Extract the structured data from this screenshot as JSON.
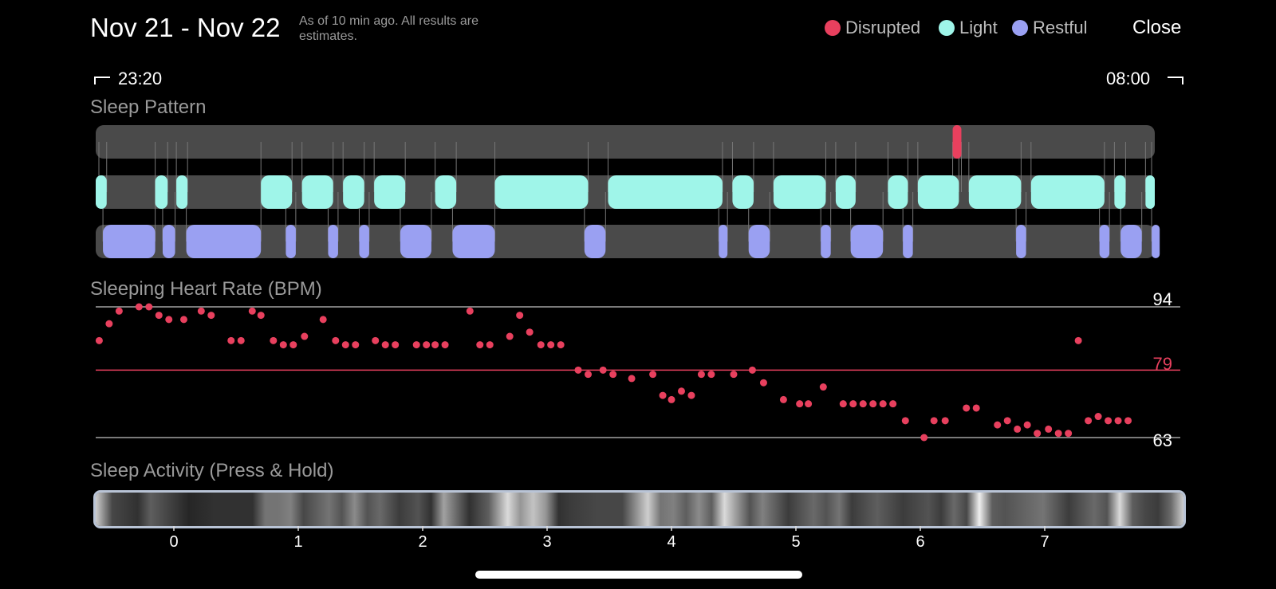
{
  "header": {
    "title": "Nov 21 - Nov 22",
    "as_of": "As of 10 min ago. All results are estimates.",
    "close_label": "Close"
  },
  "legend": [
    {
      "label": "Disrupted",
      "color": "#e8405e"
    },
    {
      "label": "Light",
      "color": "#9ff5e9"
    },
    {
      "label": "Restful",
      "color": "#9aa0f2"
    }
  ],
  "time_range": {
    "start": "23:20",
    "end": "08:00"
  },
  "sections": {
    "sleep_pattern": "Sleep Pattern",
    "heart_rate": "Sleeping Heart Rate (BPM)",
    "activity": "Sleep Activity (Press & Hold)"
  },
  "chart_data": [
    {
      "type": "timeline",
      "name": "sleep_pattern",
      "x_range_hours": [
        -0.63,
        7.9
      ],
      "rows": [
        {
          "state": "Disrupted",
          "color": "#e8405e",
          "segments": [
            [
              6.26,
              6.33
            ]
          ]
        },
        {
          "state": "Light",
          "color": "#9ff5e9",
          "segments": [
            [
              -0.63,
              -0.54
            ],
            [
              -0.15,
              -0.05
            ],
            [
              0.02,
              0.11
            ],
            [
              0.7,
              0.95
            ],
            [
              1.03,
              1.28
            ],
            [
              1.36,
              1.53
            ],
            [
              1.61,
              1.86
            ],
            [
              2.1,
              2.27
            ],
            [
              2.58,
              3.33
            ],
            [
              3.49,
              4.41
            ],
            [
              4.49,
              4.66
            ],
            [
              4.82,
              5.24
            ],
            [
              5.32,
              5.48
            ],
            [
              5.74,
              5.9
            ],
            [
              5.98,
              6.31
            ],
            [
              6.39,
              6.81
            ],
            [
              6.89,
              7.48
            ],
            [
              7.56,
              7.65
            ],
            [
              7.81,
              7.9
            ]
          ]
        },
        {
          "state": "Restful",
          "color": "#9aa0f2",
          "segments": [
            [
              -0.57,
              -0.15
            ],
            [
              -0.09,
              0.01
            ],
            [
              0.1,
              0.7
            ],
            [
              0.9,
              0.98
            ],
            [
              1.24,
              1.32
            ],
            [
              1.49,
              1.57
            ],
            [
              1.82,
              2.07
            ],
            [
              2.24,
              2.58
            ],
            [
              3.3,
              3.47
            ],
            [
              4.38,
              4.45
            ],
            [
              4.62,
              4.79
            ],
            [
              5.2,
              5.28
            ],
            [
              5.44,
              5.7
            ],
            [
              5.86,
              5.94
            ],
            [
              6.77,
              6.85
            ],
            [
              7.44,
              7.52
            ],
            [
              7.61,
              7.78
            ],
            [
              7.86,
              7.94
            ]
          ]
        }
      ]
    },
    {
      "type": "scatter",
      "name": "sleeping_heart_rate",
      "ylim": [
        63,
        94
      ],
      "y_ticks": [
        94,
        79,
        63
      ],
      "reference_line": 79,
      "x_hours": [
        -0.6,
        -0.52,
        -0.44,
        -0.28,
        -0.2,
        -0.12,
        -0.04,
        0.08,
        0.22,
        0.3,
        0.46,
        0.54,
        0.63,
        0.7,
        0.8,
        0.88,
        0.96,
        1.05,
        1.2,
        1.3,
        1.38,
        1.46,
        1.62,
        1.7,
        1.78,
        1.95,
        2.03,
        2.1,
        2.18,
        2.38,
        2.46,
        2.54,
        2.7,
        2.78,
        2.86,
        2.95,
        3.03,
        3.11,
        3.25,
        3.33,
        3.45,
        3.53,
        3.68,
        3.85,
        3.93,
        4.0,
        4.08,
        4.16,
        4.24,
        4.32,
        4.5,
        4.65,
        4.74,
        4.9,
        5.03,
        5.1,
        5.22,
        5.38,
        5.46,
        5.54,
        5.62,
        5.7,
        5.78,
        5.88,
        6.03,
        6.11,
        6.2,
        6.37,
        6.45,
        6.62,
        6.7,
        6.78,
        6.86,
        6.94,
        7.03,
        7.11,
        7.19,
        7.27,
        7.35,
        7.43,
        7.51,
        7.59,
        7.67
      ],
      "values": [
        86,
        90,
        93,
        94,
        94,
        92,
        91,
        91,
        93,
        92,
        86,
        86,
        93,
        92,
        86,
        85,
        85,
        87,
        91,
        86,
        85,
        85,
        86,
        85,
        85,
        85,
        85,
        85,
        85,
        93,
        85,
        85,
        87,
        92,
        88,
        85,
        85,
        85,
        79,
        78,
        79,
        78,
        77,
        78,
        73,
        72,
        74,
        73,
        78,
        78,
        78,
        79,
        76,
        72,
        71,
        71,
        75,
        71,
        71,
        71,
        71,
        71,
        71,
        67,
        63,
        67,
        67,
        70,
        70,
        66,
        67,
        65,
        66,
        64,
        65,
        64,
        64,
        86,
        67,
        68,
        67,
        67,
        67
      ]
    },
    {
      "type": "heatmap",
      "name": "sleep_activity",
      "x_ticks": [
        0,
        1,
        2,
        3,
        4,
        5,
        6,
        7
      ],
      "x_range_hours": [
        -0.63,
        7.9
      ],
      "intensity_x_hours": [
        -0.63,
        -0.5,
        -0.3,
        -0.2,
        0.1,
        0.3,
        0.6,
        0.7,
        0.8,
        0.9,
        1.0,
        1.1,
        1.2,
        1.3,
        1.4,
        1.5,
        1.6,
        1.75,
        1.9,
        2.0,
        2.1,
        2.3,
        2.45,
        2.6,
        2.7,
        2.8,
        2.9,
        3.0,
        3.1,
        3.3,
        3.5,
        3.6,
        3.7,
        3.8,
        3.9,
        4.0,
        4.1,
        4.2,
        4.3,
        4.5,
        4.6,
        4.8,
        5.0,
        5.1,
        5.2,
        5.3,
        5.5,
        5.7,
        5.9,
        6.0,
        6.1,
        6.2,
        6.3,
        6.4,
        6.5,
        6.8,
        7.0,
        7.1,
        7.2,
        7.3,
        7.4,
        7.5,
        7.6,
        7.7,
        7.8,
        7.9
      ],
      "intensity": [
        0.85,
        0.25,
        0.15,
        0.35,
        0.1,
        0.15,
        0.15,
        0.45,
        0.45,
        0.5,
        0.25,
        0.35,
        0.45,
        0.3,
        0.55,
        0.3,
        0.4,
        0.2,
        0.3,
        0.15,
        0.65,
        0.15,
        0.35,
        0.9,
        0.6,
        0.8,
        0.6,
        0.15,
        0.2,
        0.25,
        0.25,
        0.55,
        0.85,
        0.45,
        0.5,
        0.35,
        0.55,
        0.35,
        0.9,
        0.3,
        0.5,
        0.2,
        0.4,
        0.3,
        0.45,
        0.2,
        0.35,
        0.2,
        0.3,
        0.2,
        0.4,
        0.25,
        1.0,
        0.35,
        0.3,
        0.45,
        0.2,
        0.3,
        0.4,
        0.3,
        0.9,
        0.35,
        0.25,
        0.2,
        0.4,
        0.85
      ]
    }
  ]
}
